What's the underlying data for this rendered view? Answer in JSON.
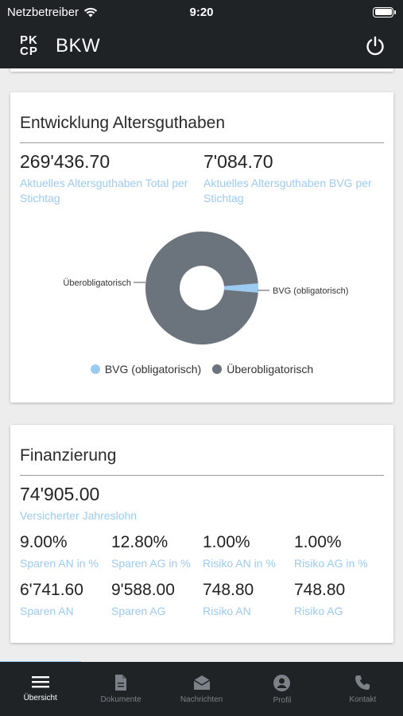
{
  "status_bar": {
    "carrier": "Netzbetreiber",
    "time": "9:20"
  },
  "header": {
    "logo_line1": "PK",
    "logo_line2": "CP",
    "title": "BKW"
  },
  "alters": {
    "title": "Entwicklung Altersguthaben",
    "total_value": "269'436.70",
    "total_label": "Aktuelles Altersguthaben Total per Stichtag",
    "bvg_value": "7'084.70",
    "bvg_label": "Aktuelles Altersguthaben BVG per Stichtag"
  },
  "chart_data": {
    "type": "pie",
    "donut": true,
    "title": "",
    "labels": [
      "BVG (obligatorisch)",
      "Überobligatorisch"
    ],
    "values": [
      7084.7,
      262352.0
    ],
    "colors": [
      "#9ccbf2",
      "#6b747c"
    ],
    "legend_position": "bottom"
  },
  "finanzierung": {
    "title": "Finanzierung",
    "lohn_value": "74'905.00",
    "lohn_label": "Versicherter Jahreslohn",
    "row1": [
      {
        "value": "9.00%",
        "label": "Sparen AN in %"
      },
      {
        "value": "12.80%",
        "label": "Sparen AG in %"
      },
      {
        "value": "1.00%",
        "label": "Risiko AN in %"
      },
      {
        "value": "1.00%",
        "label": "Risiko AG in %"
      }
    ],
    "row2": [
      {
        "value": "6'741.60",
        "label": "Sparen AN"
      },
      {
        "value": "9'588.00",
        "label": "Sparen AG"
      },
      {
        "value": "748.80",
        "label": "Risiko AN"
      },
      {
        "value": "748.80",
        "label": "Risiko AG"
      }
    ]
  },
  "tabs": [
    {
      "label": "Übersicht",
      "icon": "menu-icon",
      "active": true
    },
    {
      "label": "Dokumente",
      "icon": "document-icon",
      "active": false
    },
    {
      "label": "Nachrichten",
      "icon": "envelope-icon",
      "active": false
    },
    {
      "label": "Profil",
      "icon": "profile-icon",
      "active": false
    },
    {
      "label": "Kontakt",
      "icon": "phone-icon",
      "active": false
    }
  ],
  "colors": {
    "accent": "#9ccbf2",
    "dark": "#1f2326",
    "series_dark": "#6b747c"
  }
}
